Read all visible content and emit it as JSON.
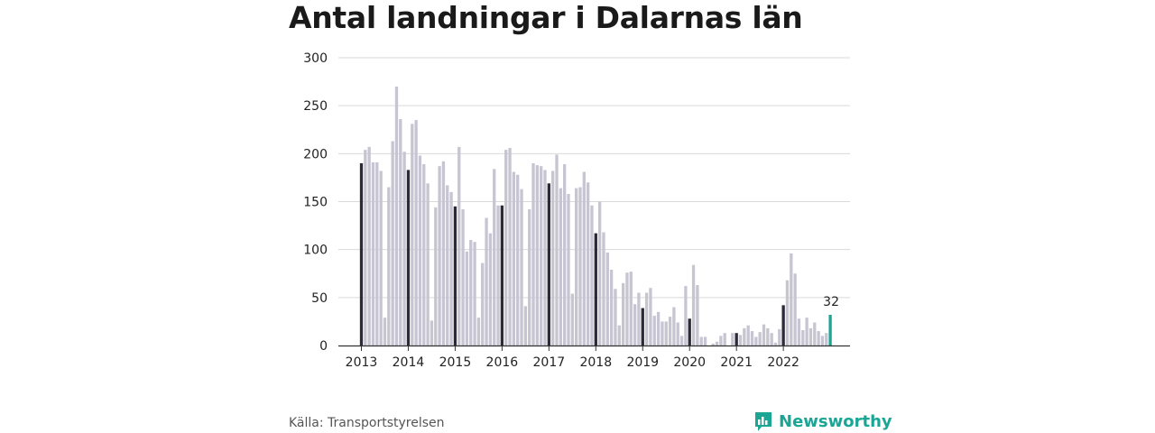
{
  "title": "Antal landningar i Dalarnas län",
  "source": "Källa: Transportstyrelsen",
  "brand": {
    "name": "Newsworthy",
    "icon": "bar-chart-speech-icon"
  },
  "colors": {
    "normal": "#c6c5d1",
    "january": "#2b2a3a",
    "latest": "#1aa595",
    "grid": "#d9d9d9",
    "axis": "#333333"
  },
  "chart_data": {
    "type": "bar",
    "title": "Antal landningar i Dalarnas län",
    "xlabel": "",
    "ylabel": "",
    "ylim": [
      0,
      300
    ],
    "yticks": [
      0,
      50,
      100,
      150,
      200,
      250,
      300
    ],
    "xticks": [
      "2013",
      "2014",
      "2015",
      "2016",
      "2017",
      "2018",
      "2019",
      "2020",
      "2021",
      "2022"
    ],
    "grid": true,
    "legend": "none",
    "highlight_label": "32",
    "series": [
      {
        "year": "2013",
        "values": [
          190,
          204,
          207,
          191,
          191,
          182,
          29,
          165,
          213,
          270,
          236,
          202
        ]
      },
      {
        "year": "2014",
        "values": [
          183,
          231,
          235,
          198,
          189,
          169,
          26,
          144,
          187,
          192,
          167,
          160
        ]
      },
      {
        "year": "2015",
        "values": [
          145,
          207,
          142,
          98,
          110,
          108,
          29,
          86,
          133,
          117,
          184,
          146
        ]
      },
      {
        "year": "2016",
        "values": [
          146,
          204,
          206,
          181,
          178,
          163,
          41,
          142,
          190,
          188,
          187,
          183
        ]
      },
      {
        "year": "2017",
        "values": [
          169,
          182,
          199,
          164,
          189,
          158,
          54,
          164,
          165,
          181,
          170,
          146
        ]
      },
      {
        "year": "2018",
        "values": [
          117,
          150,
          118,
          97,
          79,
          59,
          21,
          65,
          76,
          77,
          43,
          55
        ]
      },
      {
        "year": "2019",
        "values": [
          39,
          55,
          60,
          31,
          35,
          25,
          25,
          30,
          40,
          24,
          10,
          62
        ]
      },
      {
        "year": "2020",
        "values": [
          28,
          84,
          63,
          9,
          9,
          0,
          2,
          4,
          10,
          13,
          0,
          13
        ]
      },
      {
        "year": "2021",
        "values": [
          13,
          11,
          18,
          21,
          15,
          9,
          14,
          22,
          18,
          13,
          3,
          17
        ]
      },
      {
        "year": "2022",
        "values": [
          42,
          68,
          96,
          75,
          28,
          16,
          29,
          18,
          24,
          15,
          10,
          13
        ]
      },
      {
        "year": "2023",
        "values": [
          32
        ]
      }
    ]
  }
}
